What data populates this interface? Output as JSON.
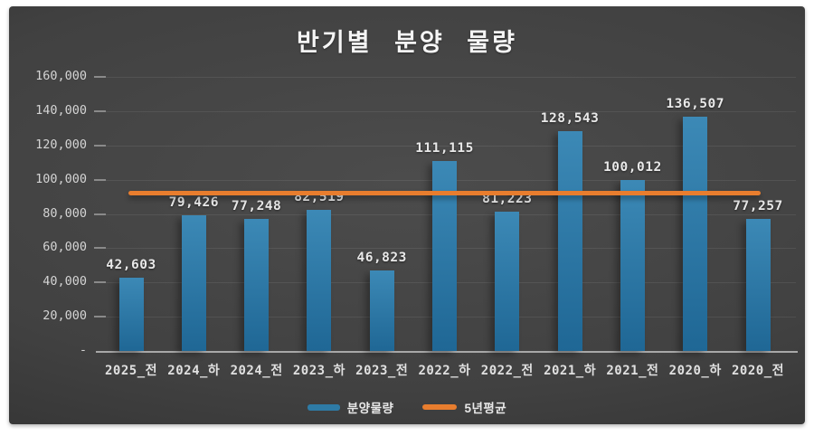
{
  "title": "반기별 분양 물량",
  "colors": {
    "bar": "#2e7ba6",
    "bar_gradient_top": "#3c89b6",
    "bar_gradient_bottom": "#1f6795",
    "line": "#e87d2e",
    "panel_background": "#414141",
    "text_light": "#e9e9e9"
  },
  "chart_data": {
    "type": "bar",
    "title": "반기별 분양 물량",
    "categories": [
      "2025_전",
      "2024_하",
      "2024_전",
      "2023_하",
      "2023_전",
      "2022_하",
      "2022_전",
      "2021_하",
      "2021_전",
      "2020_하",
      "2020_전"
    ],
    "series": [
      {
        "name": "분양물량",
        "type": "bar",
        "color": "#2e7ba6",
        "values": [
          42603,
          79426,
          77248,
          82519,
          46823,
          111115,
          81223,
          128543,
          100012,
          136507,
          77257
        ],
        "labels": [
          "42,603",
          "79,426",
          "77,248",
          "82,519",
          "46,823",
          "111,115",
          "81,223",
          "128,543",
          "100,012",
          "136,507",
          "77,257"
        ]
      },
      {
        "name": "5년평균",
        "type": "line",
        "color": "#e87d2e",
        "value": 92067
      }
    ],
    "xlabel": "",
    "ylabel": "",
    "ylim": [
      0,
      160000
    ],
    "y_ticks": [
      {
        "value": 160000,
        "label": "160,000"
      },
      {
        "value": 140000,
        "label": "140,000"
      },
      {
        "value": 120000,
        "label": "120,000"
      },
      {
        "value": 100000,
        "label": "100,000"
      },
      {
        "value": 80000,
        "label": "80,000"
      },
      {
        "value": 60000,
        "label": "60,000"
      },
      {
        "value": 40000,
        "label": "40,000"
      },
      {
        "value": 20000,
        "label": "20,000"
      },
      {
        "value": 0,
        "label": "-"
      }
    ],
    "grid": "horizontal",
    "legend_position": "bottom"
  },
  "legend": {
    "items": [
      {
        "label": "분양물량",
        "swatch": "bar"
      },
      {
        "label": "5년평균",
        "swatch": "line"
      }
    ]
  }
}
